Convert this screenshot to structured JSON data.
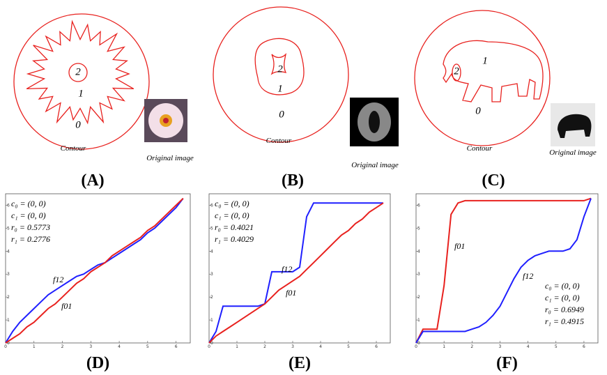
{
  "panels": [
    {
      "label": "(A)",
      "regions": [
        "0",
        "1",
        "2"
      ],
      "caption": "Contour",
      "image_caption": "Original image"
    },
    {
      "label": "(B)",
      "regions": [
        "0",
        "1",
        "2"
      ],
      "caption": "Contour",
      "image_caption": "Original image"
    },
    {
      "label": "(C)",
      "regions": [
        "0",
        "1",
        "2"
      ],
      "caption": "Contour",
      "image_caption": "Original image"
    }
  ],
  "chart_data": [
    {
      "type": "line",
      "label": "(D)",
      "annotation": [
        "c₀ = (0, 0)",
        "c₁ = (0, 0)",
        "r₀ = 0.5773",
        "r₁ = 0.2776"
      ],
      "x": [
        0,
        0.25,
        0.5,
        0.75,
        1,
        1.25,
        1.5,
        1.75,
        2,
        2.25,
        2.5,
        2.75,
        3,
        3.25,
        3.5,
        3.75,
        4,
        4.25,
        4.5,
        4.75,
        5,
        5.25,
        5.5,
        5.75,
        6,
        6.25
      ],
      "series": [
        {
          "name": "f12",
          "color": "#1f1fff",
          "values": [
            0,
            0.5,
            0.9,
            1.2,
            1.5,
            1.8,
            2.1,
            2.3,
            2.5,
            2.7,
            2.9,
            3.0,
            3.2,
            3.4,
            3.5,
            3.7,
            3.9,
            4.1,
            4.3,
            4.5,
            4.8,
            5.0,
            5.3,
            5.6,
            5.9,
            6.3
          ]
        },
        {
          "name": "f01",
          "color": "#e8211e",
          "values": [
            0,
            0.2,
            0.4,
            0.7,
            0.9,
            1.2,
            1.5,
            1.7,
            2.0,
            2.3,
            2.6,
            2.8,
            3.1,
            3.3,
            3.5,
            3.8,
            4.0,
            4.2,
            4.4,
            4.6,
            4.9,
            5.1,
            5.4,
            5.7,
            6.0,
            6.3
          ]
        }
      ],
      "xlim": [
        0,
        6.5
      ],
      "ylim": [
        0,
        6.5
      ],
      "xticks": [
        0,
        1,
        2,
        3,
        4,
        5,
        6
      ],
      "yticks": [
        0,
        1,
        2,
        3,
        4,
        5,
        6
      ]
    },
    {
      "type": "line",
      "label": "(E)",
      "annotation": [
        "c₀ = (0, 0)",
        "c₁ = (0, 0)",
        "r₀ = 0.4021",
        "r₁ = 0.4029"
      ],
      "x": [
        0,
        0.25,
        0.5,
        0.75,
        1,
        1.25,
        1.5,
        1.75,
        2,
        2.25,
        2.5,
        2.75,
        3,
        3.25,
        3.5,
        3.75,
        4,
        4.25,
        4.5,
        4.75,
        5,
        5.25,
        5.5,
        5.75,
        6,
        6.25
      ],
      "series": [
        {
          "name": "f12",
          "color": "#1f1fff",
          "values": [
            0,
            0.5,
            1.6,
            1.6,
            1.6,
            1.6,
            1.6,
            1.6,
            1.7,
            3.1,
            3.1,
            3.1,
            3.1,
            3.3,
            5.5,
            6.1,
            6.1,
            6.1,
            6.1,
            6.1,
            6.1,
            6.1,
            6.1,
            6.1,
            6.1,
            6.1
          ]
        },
        {
          "name": "f01",
          "color": "#e8211e",
          "values": [
            0,
            0.3,
            0.5,
            0.7,
            0.9,
            1.1,
            1.3,
            1.5,
            1.7,
            2.0,
            2.3,
            2.5,
            2.7,
            2.9,
            3.2,
            3.5,
            3.8,
            4.1,
            4.4,
            4.7,
            4.9,
            5.2,
            5.4,
            5.7,
            5.9,
            6.1
          ]
        }
      ],
      "xlim": [
        0,
        6.5
      ],
      "ylim": [
        0,
        6.5
      ],
      "xticks": [
        0,
        1,
        2,
        3,
        4,
        5,
        6
      ],
      "yticks": [
        0,
        1,
        2,
        3,
        4,
        5,
        6
      ]
    },
    {
      "type": "line",
      "label": "(F)",
      "annotation": [
        "c₀ = (0, 0)",
        "c₁ = (0, 0)",
        "r₀ = 0.6949",
        "r₁ = 0.4915"
      ],
      "x": [
        0,
        0.25,
        0.5,
        0.75,
        1,
        1.25,
        1.5,
        1.75,
        2,
        2.25,
        2.5,
        2.75,
        3,
        3.25,
        3.5,
        3.75,
        4,
        4.25,
        4.5,
        4.75,
        5,
        5.25,
        5.5,
        5.75,
        6,
        6.25
      ],
      "series": [
        {
          "name": "f01",
          "color": "#e8211e",
          "values": [
            0,
            0.6,
            0.6,
            0.6,
            2.5,
            5.6,
            6.1,
            6.2,
            6.2,
            6.2,
            6.2,
            6.2,
            6.2,
            6.2,
            6.2,
            6.2,
            6.2,
            6.2,
            6.2,
            6.2,
            6.2,
            6.2,
            6.2,
            6.2,
            6.2,
            6.3
          ]
        },
        {
          "name": "f12",
          "color": "#1f1fff",
          "values": [
            0,
            0.5,
            0.5,
            0.5,
            0.5,
            0.5,
            0.5,
            0.5,
            0.6,
            0.7,
            0.9,
            1.2,
            1.6,
            2.2,
            2.8,
            3.3,
            3.6,
            3.8,
            3.9,
            4.0,
            4.0,
            4.0,
            4.1,
            4.5,
            5.5,
            6.3
          ]
        }
      ],
      "xlim": [
        0,
        6.5
      ],
      "ylim": [
        0,
        6.5
      ],
      "xticks": [
        0,
        1,
        2,
        3,
        4,
        5,
        6
      ],
      "yticks": [
        0,
        1,
        2,
        3,
        4,
        5,
        6
      ]
    }
  ]
}
